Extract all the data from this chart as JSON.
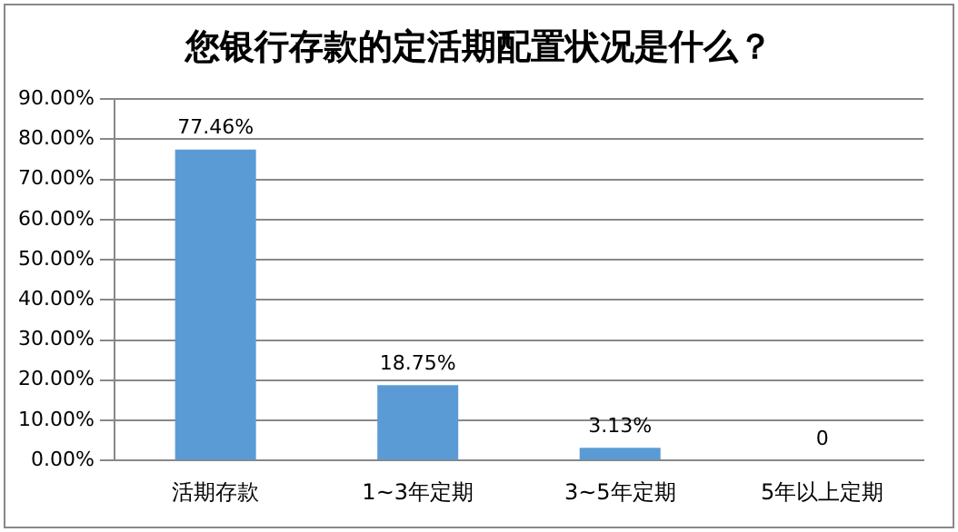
{
  "chart_data": {
    "type": "bar",
    "title": "您银行存款的定活期配置状况是什么？",
    "categories": [
      "活期存款",
      "1~3年定期",
      "3~5年定期",
      "5年以上定期"
    ],
    "values": [
      77.46,
      18.75,
      3.13,
      0
    ],
    "value_labels": [
      "77.46%",
      "18.75%",
      "3.13%",
      "0"
    ],
    "color": "#5b9bd5",
    "ylim": [
      0,
      90
    ],
    "yticks": [
      {
        "value": 0,
        "label": "0.00%"
      },
      {
        "value": 10,
        "label": "10.00%"
      },
      {
        "value": 20,
        "label": "20.00%"
      },
      {
        "value": 30,
        "label": "30.00%"
      },
      {
        "value": 40,
        "label": "40.00%"
      },
      {
        "value": 50,
        "label": "50.00%"
      },
      {
        "value": 60,
        "label": "60.00%"
      },
      {
        "value": 70,
        "label": "70.00%"
      },
      {
        "value": 80,
        "label": "80.00%"
      },
      {
        "value": 90,
        "label": "90.00%"
      }
    ],
    "grid": "y",
    "legend": false
  }
}
